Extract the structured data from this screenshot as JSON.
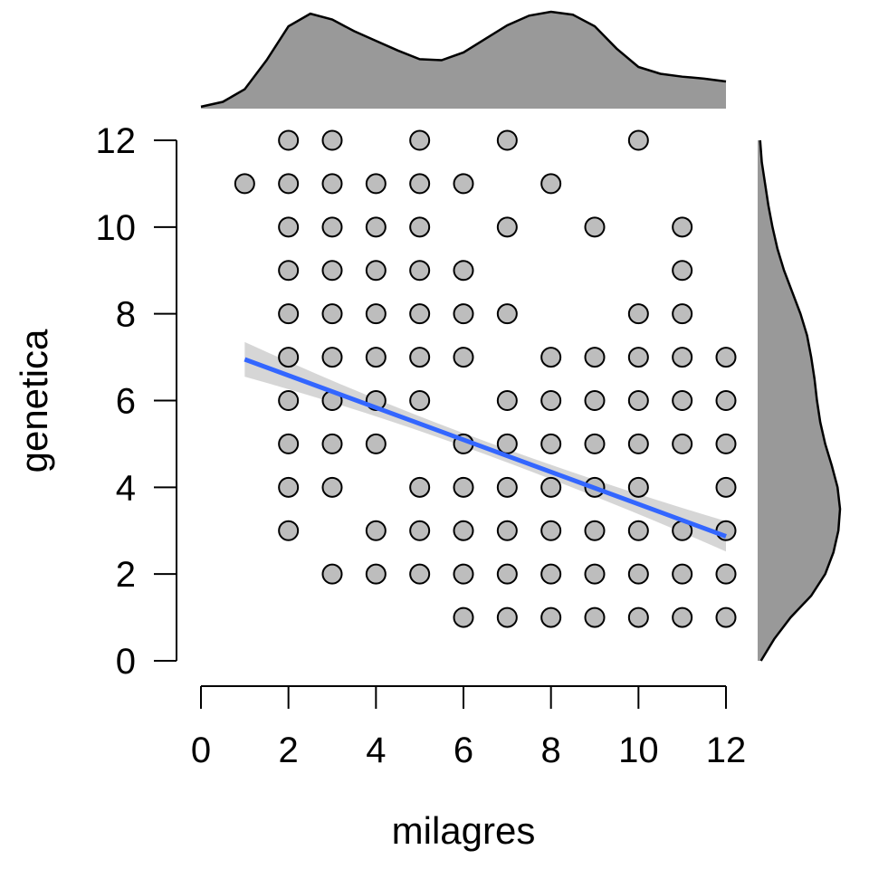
{
  "chart_data": {
    "type": "scatter",
    "title": "",
    "xlabel": "milagres",
    "ylabel": "genetica",
    "xlim": [
      0,
      12
    ],
    "ylim": [
      0,
      12
    ],
    "x_ticks": [
      0,
      2,
      4,
      6,
      8,
      10,
      12
    ],
    "y_ticks": [
      0,
      2,
      4,
      6,
      8,
      10,
      12
    ],
    "grid": false,
    "legend": "none",
    "points": [
      [
        1,
        11
      ],
      [
        2,
        12
      ],
      [
        2,
        11
      ],
      [
        2,
        10
      ],
      [
        2,
        9
      ],
      [
        2,
        8
      ],
      [
        2,
        7
      ],
      [
        2,
        6
      ],
      [
        2,
        5
      ],
      [
        2,
        4
      ],
      [
        2,
        3
      ],
      [
        3,
        12
      ],
      [
        3,
        11
      ],
      [
        3,
        10
      ],
      [
        3,
        9
      ],
      [
        3,
        8
      ],
      [
        3,
        7
      ],
      [
        3,
        6
      ],
      [
        3,
        5
      ],
      [
        3,
        4
      ],
      [
        3,
        2
      ],
      [
        4,
        11
      ],
      [
        4,
        10
      ],
      [
        4,
        9
      ],
      [
        4,
        8
      ],
      [
        4,
        7
      ],
      [
        4,
        6
      ],
      [
        4,
        5
      ],
      [
        4,
        3
      ],
      [
        4,
        2
      ],
      [
        5,
        12
      ],
      [
        5,
        11
      ],
      [
        5,
        10
      ],
      [
        5,
        9
      ],
      [
        5,
        8
      ],
      [
        5,
        7
      ],
      [
        5,
        6
      ],
      [
        5,
        4
      ],
      [
        5,
        3
      ],
      [
        5,
        2
      ],
      [
        6,
        11
      ],
      [
        6,
        9
      ],
      [
        6,
        8
      ],
      [
        6,
        7
      ],
      [
        6,
        5
      ],
      [
        6,
        4
      ],
      [
        6,
        3
      ],
      [
        6,
        2
      ],
      [
        6,
        1
      ],
      [
        7,
        12
      ],
      [
        7,
        10
      ],
      [
        7,
        8
      ],
      [
        7,
        6
      ],
      [
        7,
        5
      ],
      [
        7,
        4
      ],
      [
        7,
        3
      ],
      [
        7,
        2
      ],
      [
        7,
        1
      ],
      [
        8,
        11
      ],
      [
        8,
        7
      ],
      [
        8,
        6
      ],
      [
        8,
        5
      ],
      [
        8,
        4
      ],
      [
        8,
        3
      ],
      [
        8,
        2
      ],
      [
        8,
        1
      ],
      [
        9,
        10
      ],
      [
        9,
        7
      ],
      [
        9,
        6
      ],
      [
        9,
        5
      ],
      [
        9,
        4
      ],
      [
        9,
        3
      ],
      [
        9,
        2
      ],
      [
        9,
        1
      ],
      [
        10,
        12
      ],
      [
        10,
        8
      ],
      [
        10,
        7
      ],
      [
        10,
        6
      ],
      [
        10,
        5
      ],
      [
        10,
        4
      ],
      [
        10,
        3
      ],
      [
        10,
        2
      ],
      [
        10,
        1
      ],
      [
        11,
        10
      ],
      [
        11,
        9
      ],
      [
        11,
        8
      ],
      [
        11,
        7
      ],
      [
        11,
        6
      ],
      [
        11,
        5
      ],
      [
        11,
        3
      ],
      [
        11,
        2
      ],
      [
        11,
        1
      ],
      [
        12,
        7
      ],
      [
        12,
        6
      ],
      [
        12,
        5
      ],
      [
        12,
        4
      ],
      [
        12,
        3
      ],
      [
        12,
        2
      ],
      [
        12,
        1
      ]
    ],
    "regression": {
      "x": [
        1,
        12
      ],
      "y": [
        6.95,
        2.87
      ],
      "ci_halfwidth_ends": [
        0.4,
        0.35
      ],
      "ci_halfwidth_mid": 0.15,
      "color": "#3366ff",
      "band_color": "#cccccc"
    },
    "marginal_x_density": {
      "x": [
        0,
        0.5,
        1,
        1.5,
        2,
        2.5,
        3,
        3.5,
        4,
        4.5,
        5,
        5.5,
        6,
        6.5,
        7,
        7.5,
        8,
        8.5,
        9,
        9.5,
        10,
        10.5,
        11,
        11.5,
        12
      ],
      "density": [
        0.02,
        0.07,
        0.2,
        0.5,
        0.85,
        0.98,
        0.92,
        0.8,
        0.7,
        0.6,
        0.51,
        0.5,
        0.58,
        0.72,
        0.86,
        0.96,
        1.0,
        0.97,
        0.85,
        0.62,
        0.43,
        0.36,
        0.33,
        0.31,
        0.28
      ]
    },
    "marginal_y_density": {
      "y": [
        0,
        0.5,
        1,
        1.5,
        2,
        2.5,
        3,
        3.5,
        4,
        4.5,
        5,
        5.5,
        6,
        6.5,
        7,
        7.5,
        8,
        8.5,
        9,
        9.5,
        10,
        10.5,
        11,
        11.5,
        12
      ],
      "density": [
        0.04,
        0.2,
        0.4,
        0.65,
        0.82,
        0.92,
        0.98,
        1.0,
        0.97,
        0.9,
        0.82,
        0.76,
        0.72,
        0.69,
        0.65,
        0.6,
        0.52,
        0.42,
        0.32,
        0.24,
        0.18,
        0.13,
        0.09,
        0.05,
        0.03
      ]
    },
    "colors": {
      "point_fill": "#bdbdbd",
      "point_stroke": "#000000",
      "density_fill": "#999999",
      "line": "#3366ff"
    }
  }
}
